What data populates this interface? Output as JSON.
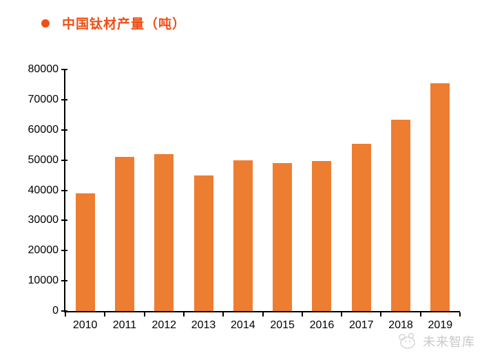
{
  "title": {
    "text": "中国钛材产量（吨）",
    "color": "#F04E14"
  },
  "watermark": {
    "text": "未来智库",
    "color": "#c9c9c9"
  },
  "colors": {
    "bar": "#ED7D31",
    "axis": "#000000",
    "tick_label": "#000000"
  },
  "chart_data": {
    "type": "bar",
    "title": "中国钛材产量（吨）",
    "categories": [
      "2010",
      "2011",
      "2012",
      "2013",
      "2014",
      "2015",
      "2016",
      "2017",
      "2018",
      "2019"
    ],
    "values": [
      39000,
      51000,
      52000,
      45000,
      50000,
      48900,
      49600,
      55400,
      63400,
      75500
    ],
    "xlabel": "",
    "ylabel": "",
    "ylim": [
      0,
      80000
    ],
    "ytick_interval": 10000,
    "ytick_labels": [
      "0",
      "10000",
      "20000",
      "30000",
      "40000",
      "50000",
      "60000",
      "70000",
      "80000"
    ],
    "grid": false,
    "legend_position": "none",
    "bar_color": "#ED7D31"
  }
}
